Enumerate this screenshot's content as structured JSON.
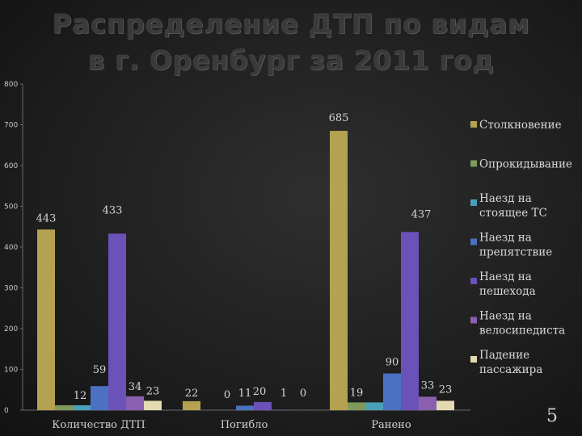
{
  "slide": {
    "title_line1": "Распределение ДТП по видам",
    "title_line2": "в г. Оренбург за 2011 год",
    "page_number": "5"
  },
  "chart_data": {
    "type": "bar",
    "title": "Распределение ДТП по видам в г. Оренбург за 2011 год",
    "categories": [
      "Количество ДТП",
      "Погибло",
      "Ранено"
    ],
    "ylim": [
      0,
      800
    ],
    "yticks": [
      0,
      100,
      200,
      300,
      400,
      500,
      600,
      700,
      800
    ],
    "grid": false,
    "legend_position": "right",
    "series": [
      {
        "name": "Столкновение",
        "color": "#b5a251",
        "values": [
          443,
          22,
          685
        ]
      },
      {
        "name": "Опрокидывание",
        "color": "#7f9a5a",
        "values": [
          12,
          0,
          19
        ]
      },
      {
        "name": "Наезд на стоящее ТС",
        "color": "#4aa0b8",
        "values": [
          12,
          0,
          19
        ]
      },
      {
        "name": "Наезд на препятствие",
        "color": "#4a72c0",
        "values": [
          59,
          11,
          90
        ]
      },
      {
        "name": "Наезд на пешехода",
        "color": "#6a52b8",
        "values": [
          433,
          20,
          437
        ]
      },
      {
        "name": "Наезд на велосипедиста",
        "color": "#8a5fb0",
        "values": [
          34,
          1,
          33
        ]
      },
      {
        "name": "Падение пассажира",
        "color": "#e4dab2",
        "values": [
          23,
          0,
          23
        ]
      }
    ],
    "data_labels": [
      {
        "series": 0,
        "category": 0,
        "text": "443"
      },
      {
        "series": 3,
        "category": 0,
        "text": "59"
      },
      {
        "series": 1,
        "category": 0,
        "text": "12"
      },
      {
        "series": 4,
        "category": 0,
        "text": "433"
      },
      {
        "series": 5,
        "category": 0,
        "text": "34"
      },
      {
        "series": 6,
        "category": 0,
        "text": "23"
      },
      {
        "series": 0,
        "category": 1,
        "text": "22"
      },
      {
        "series": 1,
        "category": 1,
        "text": "0"
      },
      {
        "series": 3,
        "category": 1,
        "text": "11"
      },
      {
        "series": 4,
        "category": 1,
        "text": "20"
      },
      {
        "series": 5,
        "category": 1,
        "text": "1"
      },
      {
        "series": 6,
        "category": 1,
        "text": "0"
      },
      {
        "series": 0,
        "category": 2,
        "text": "685"
      },
      {
        "series": 1,
        "category": 2,
        "text": "19"
      },
      {
        "series": 3,
        "category": 2,
        "text": "90"
      },
      {
        "series": 4,
        "category": 2,
        "text": "437"
      },
      {
        "series": 5,
        "category": 2,
        "text": "33"
      },
      {
        "series": 6,
        "category": 2,
        "text": "23"
      }
    ]
  }
}
